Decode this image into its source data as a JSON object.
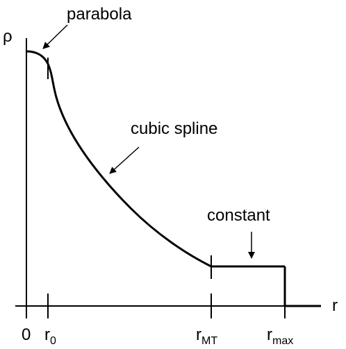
{
  "axes": {
    "y_label": "ρ",
    "x_label": "r"
  },
  "ticks": {
    "zero": "0",
    "r0": {
      "base": "r",
      "sub": "0"
    },
    "rMT": {
      "base": "r",
      "sub": "MT"
    },
    "rmax": {
      "base": "r",
      "sub": "max"
    }
  },
  "annotations": {
    "parabola": "parabola",
    "cubic_spline": "cubic spline",
    "constant": "constant"
  },
  "colors": {
    "ink": "#000000",
    "background": "#ffffff"
  }
}
